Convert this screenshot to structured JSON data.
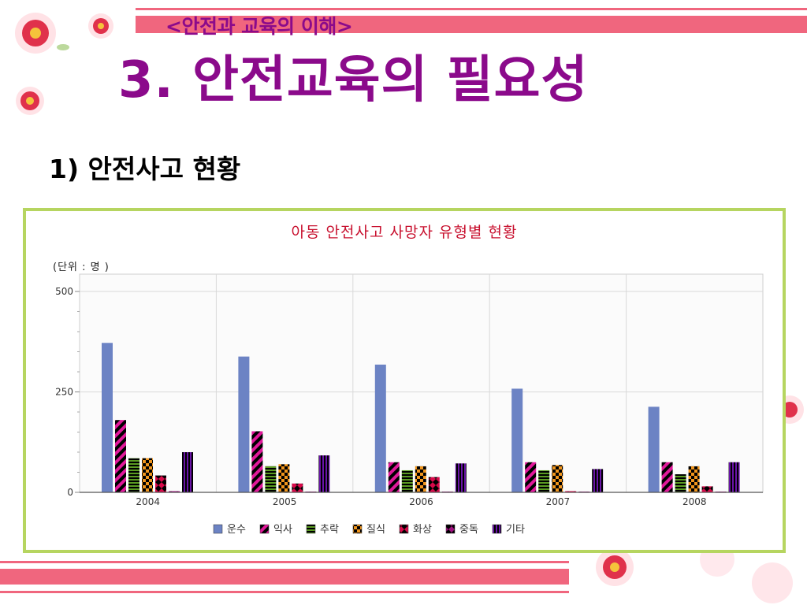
{
  "header": {
    "subtitle": "<안전과 교육의 이해>",
    "title": "3. 안전교육의 필요성",
    "section": "1) 안전사고 현황"
  },
  "colors": {
    "title": "#8b0a8b",
    "stripe": "#f0667e",
    "frame": "#b6d560",
    "chart_title": "#c8102e"
  },
  "chart_data": {
    "type": "bar",
    "title": "아동 안전사고 사망자 유형별 현황",
    "unit_label": "(단위 : 명 )",
    "categories": [
      "2004",
      "2005",
      "2006",
      "2007",
      "2008"
    ],
    "ylim": [
      0,
      500
    ],
    "yticks": [
      0,
      250,
      500
    ],
    "grid": true,
    "legend_position": "bottom",
    "series": [
      {
        "name": "운수",
        "values": [
          372,
          338,
          318,
          258,
          213
        ],
        "color": "#6c83c4",
        "pattern": "solid"
      },
      {
        "name": "익사",
        "values": [
          180,
          152,
          75,
          75,
          75
        ],
        "color": "#e0189a",
        "pattern": "diagonal"
      },
      {
        "name": "추락",
        "values": [
          85,
          65,
          55,
          55,
          45
        ],
        "color": "#5a9a22",
        "pattern": "hstripe"
      },
      {
        "name": "질식",
        "values": [
          85,
          70,
          65,
          68,
          65
        ],
        "color": "#f0951c",
        "pattern": "checker"
      },
      {
        "name": "화상",
        "values": [
          42,
          22,
          38,
          3,
          15
        ],
        "color": "#d80a4a",
        "pattern": "diamond"
      },
      {
        "name": "중독",
        "values": [
          3,
          2,
          2,
          2,
          2
        ],
        "color": "#a01080",
        "pattern": "diamond"
      },
      {
        "name": "기타",
        "values": [
          100,
          92,
          72,
          58,
          75
        ],
        "color": "#6a14a8",
        "pattern": "vstripe"
      }
    ]
  }
}
